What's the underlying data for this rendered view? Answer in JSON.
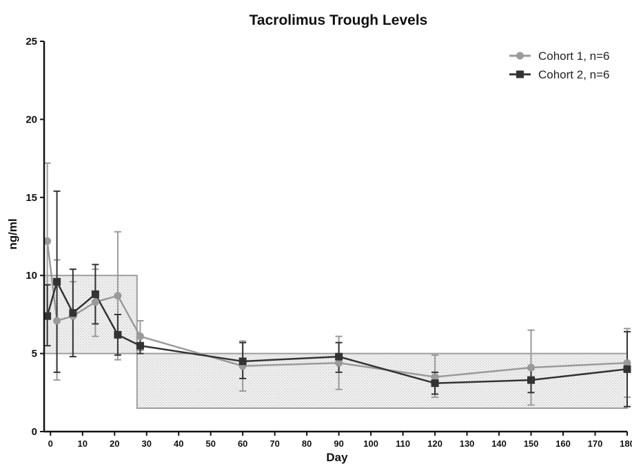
{
  "chart_data": {
    "type": "line",
    "title": "Tacrolimus Trough Levels",
    "xlabel": "Day",
    "ylabel": "ng/ml",
    "xlim": [
      -2,
      180
    ],
    "ylim": [
      0,
      25
    ],
    "x_ticks": [
      0,
      10,
      20,
      30,
      40,
      50,
      60,
      70,
      80,
      90,
      100,
      110,
      120,
      130,
      140,
      150,
      160,
      170,
      180
    ],
    "y_ticks": [
      0,
      5,
      10,
      15,
      20,
      25
    ],
    "legend_position": "top-right",
    "target_ranges": [
      {
        "x": [
          -2,
          27
        ],
        "y": [
          5,
          10
        ]
      },
      {
        "x": [
          27,
          180
        ],
        "y": [
          1.5,
          5
        ]
      }
    ],
    "series": [
      {
        "name": "Cohort 1, n=6",
        "color": "#9a9a9a",
        "marker": "circle",
        "points": [
          {
            "x": -1,
            "y": 12.2,
            "low": 7.2,
            "high": 17.2
          },
          {
            "x": 2,
            "y": 7.1,
            "low": 3.3,
            "high": 11.0
          },
          {
            "x": 7,
            "y": 7.4,
            "low": 5.0,
            "high": 9.6
          },
          {
            "x": 14,
            "y": 8.3,
            "low": 6.1,
            "high": 10.4
          },
          {
            "x": 21,
            "y": 8.7,
            "low": 4.6,
            "high": 12.8
          },
          {
            "x": 28,
            "y": 6.1,
            "low": 5.2,
            "high": 7.1
          },
          {
            "x": 60,
            "y": 4.2,
            "low": 2.6,
            "high": 5.8
          },
          {
            "x": 90,
            "y": 4.4,
            "low": 2.7,
            "high": 6.1
          },
          {
            "x": 120,
            "y": 3.5,
            "low": 2.2,
            "high": 4.9
          },
          {
            "x": 150,
            "y": 4.1,
            "low": 1.7,
            "high": 6.5
          },
          {
            "x": 180,
            "y": 4.4,
            "low": 2.2,
            "high": 6.6
          }
        ]
      },
      {
        "name": "Cohort 2, n=6",
        "color": "#333333",
        "marker": "square",
        "points": [
          {
            "x": -1,
            "y": 7.4,
            "low": 5.5,
            "high": 9.4
          },
          {
            "x": 2,
            "y": 9.6,
            "low": 3.8,
            "high": 15.4
          },
          {
            "x": 7,
            "y": 7.6,
            "low": 4.8,
            "high": 10.4
          },
          {
            "x": 14,
            "y": 8.8,
            "low": 6.9,
            "high": 10.7
          },
          {
            "x": 21,
            "y": 6.2,
            "low": 4.9,
            "high": 7.5
          },
          {
            "x": 28,
            "y": 5.5,
            "low": 5.0,
            "high": 6.1
          },
          {
            "x": 60,
            "y": 4.5,
            "low": 3.4,
            "high": 5.7
          },
          {
            "x": 90,
            "y": 4.8,
            "low": 3.8,
            "high": 5.7
          },
          {
            "x": 120,
            "y": 3.1,
            "low": 2.4,
            "high": 3.8
          },
          {
            "x": 150,
            "y": 3.3,
            "low": 2.5,
            "high": 4.0
          },
          {
            "x": 180,
            "y": 4.0,
            "low": 1.6,
            "high": 6.4
          }
        ]
      }
    ]
  }
}
